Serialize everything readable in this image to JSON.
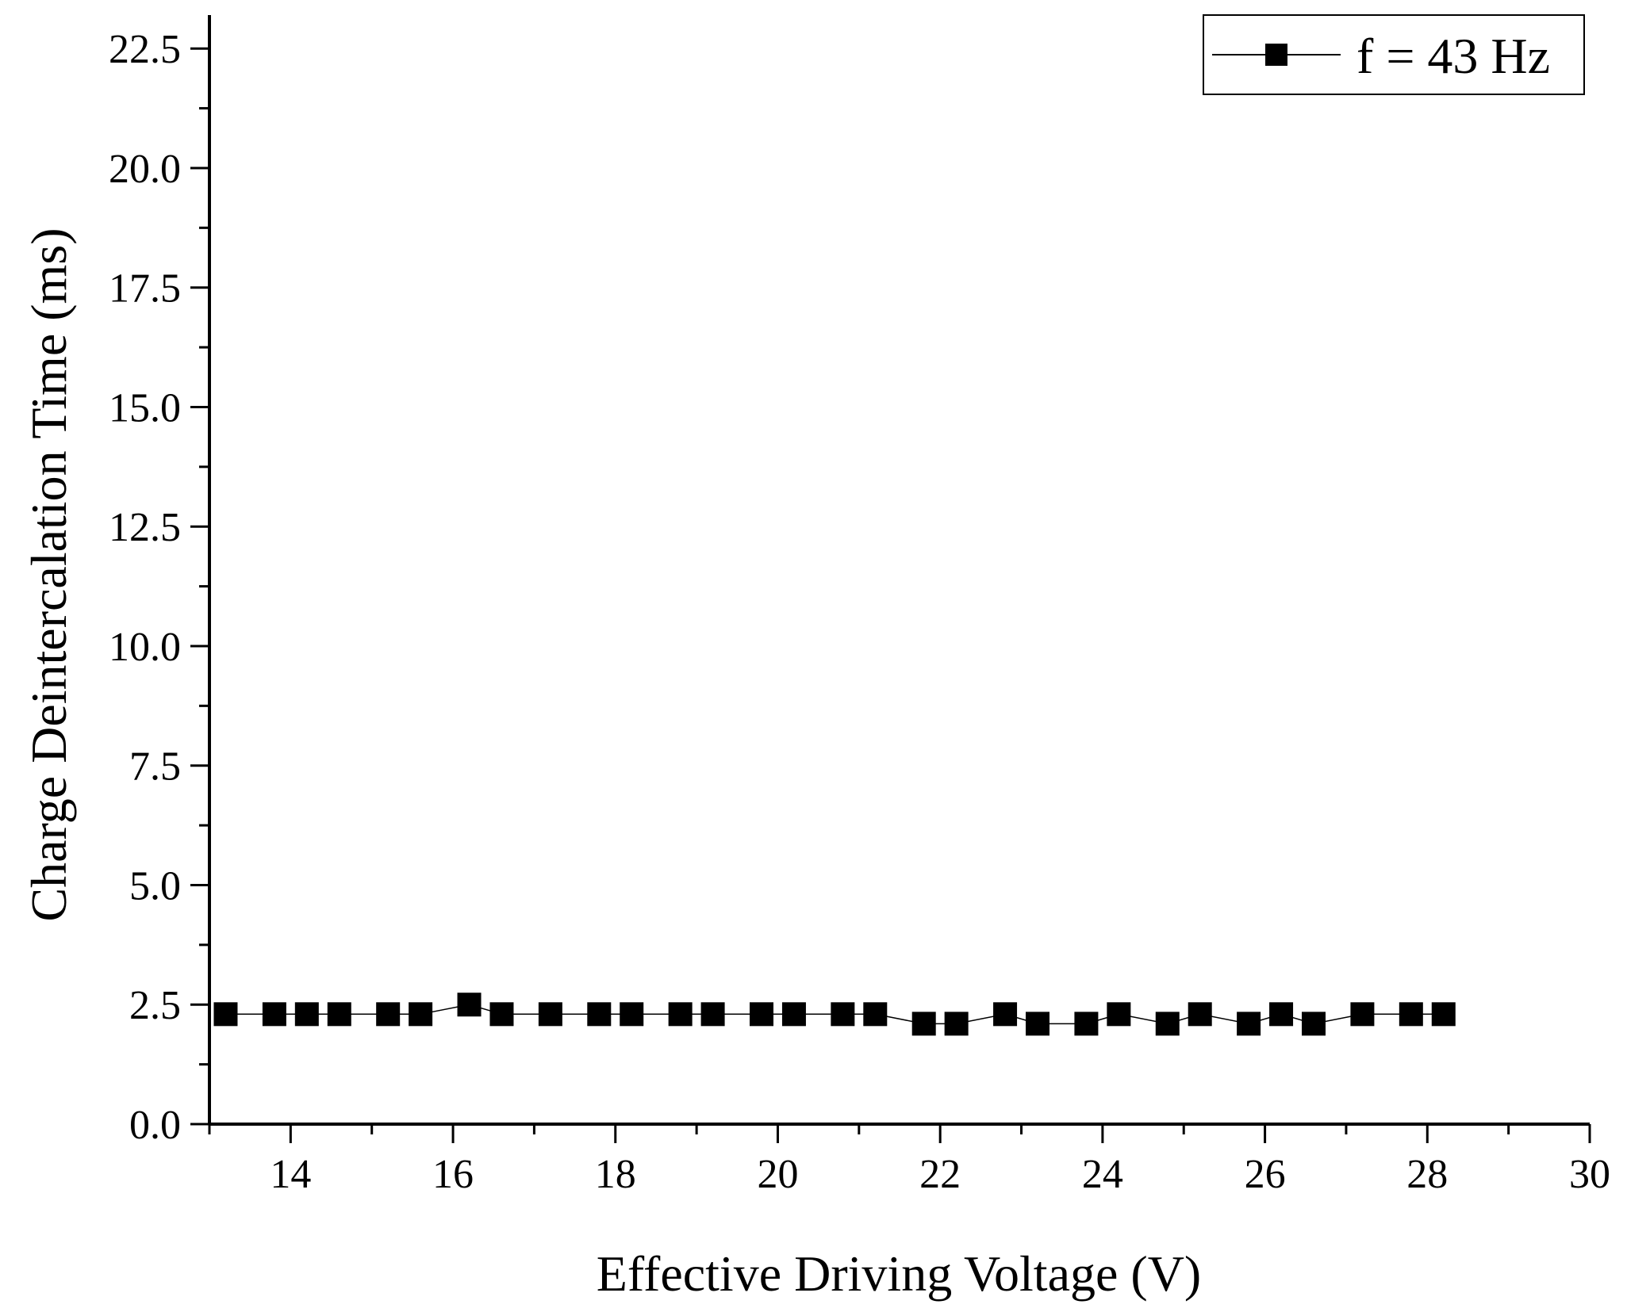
{
  "chart_data": {
    "type": "line",
    "xlabel": "Effective Driving Voltage (V)",
    "ylabel": "Charge Deintercalation Time (ms)",
    "xlim": [
      13,
      30
    ],
    "ylim": [
      0,
      23.2
    ],
    "x_ticks": [
      14,
      16,
      18,
      20,
      22,
      24,
      26,
      28,
      30
    ],
    "x_tick_labels": [
      "14",
      "16",
      "18",
      "20",
      "22",
      "24",
      "26",
      "28",
      "30"
    ],
    "y_ticks": [
      0,
      2.5,
      5,
      7.5,
      10,
      12.5,
      15,
      17.5,
      20,
      22.5
    ],
    "y_tick_labels": [
      "0.0",
      "2.5",
      "5.0",
      "7.5",
      "10.0",
      "12.5",
      "15.0",
      "17.5",
      "20.0",
      "22.5"
    ],
    "grid": false,
    "legend_position": "top-right",
    "series": [
      {
        "name": "f = 43 Hz",
        "marker": "square",
        "color": "#000000",
        "x": [
          13.2,
          13.8,
          14.2,
          14.6,
          15.2,
          15.6,
          16.2,
          16.6,
          17.2,
          17.8,
          18.2,
          18.8,
          19.2,
          19.8,
          20.2,
          20.8,
          21.2,
          21.8,
          22.2,
          22.8,
          23.2,
          23.8,
          24.2,
          24.8,
          25.2,
          25.8,
          26.2,
          26.6,
          27.2,
          27.8,
          28.2
        ],
        "y": [
          2.3,
          2.3,
          2.3,
          2.3,
          2.3,
          2.3,
          2.5,
          2.3,
          2.3,
          2.3,
          2.3,
          2.3,
          2.3,
          2.3,
          2.3,
          2.3,
          2.3,
          2.1,
          2.1,
          2.3,
          2.1,
          2.1,
          2.3,
          2.1,
          2.3,
          2.1,
          2.3,
          2.1,
          2.3,
          2.3,
          2.3
        ]
      }
    ]
  }
}
